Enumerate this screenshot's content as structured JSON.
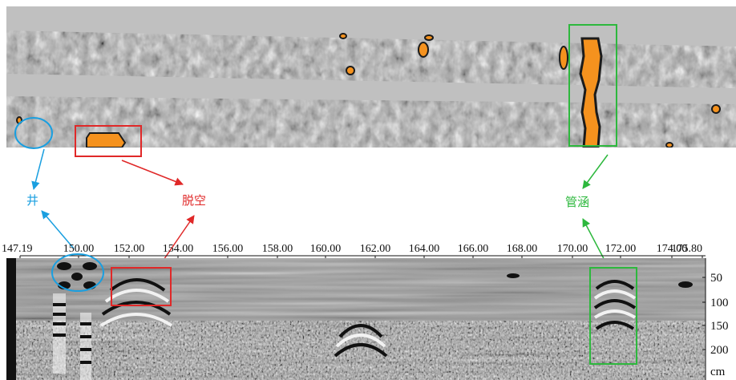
{
  "annotations": {
    "well": {
      "label": "井",
      "color": "#1a9fe0"
    },
    "void": {
      "label": "脱空",
      "color": "#e02828"
    },
    "culvert": {
      "label": "管涵",
      "color": "#2db83d"
    }
  },
  "distance_axis": {
    "ticks": [
      "147.19",
      "150.00",
      "152.00",
      "154.00",
      "156.00",
      "158.00",
      "160.00",
      "162.00",
      "164.00",
      "166.00",
      "168.00",
      "170.00",
      "172.00",
      "174.00",
      "175.80"
    ]
  },
  "depth_axis": {
    "ticks": [
      "50",
      "100",
      "150",
      "200"
    ],
    "unit": "cm"
  },
  "colors": {
    "anomaly_fill": "#f5921e",
    "radar_gray": "#9a9a9a",
    "slice_mask": "#c0c0c0"
  }
}
